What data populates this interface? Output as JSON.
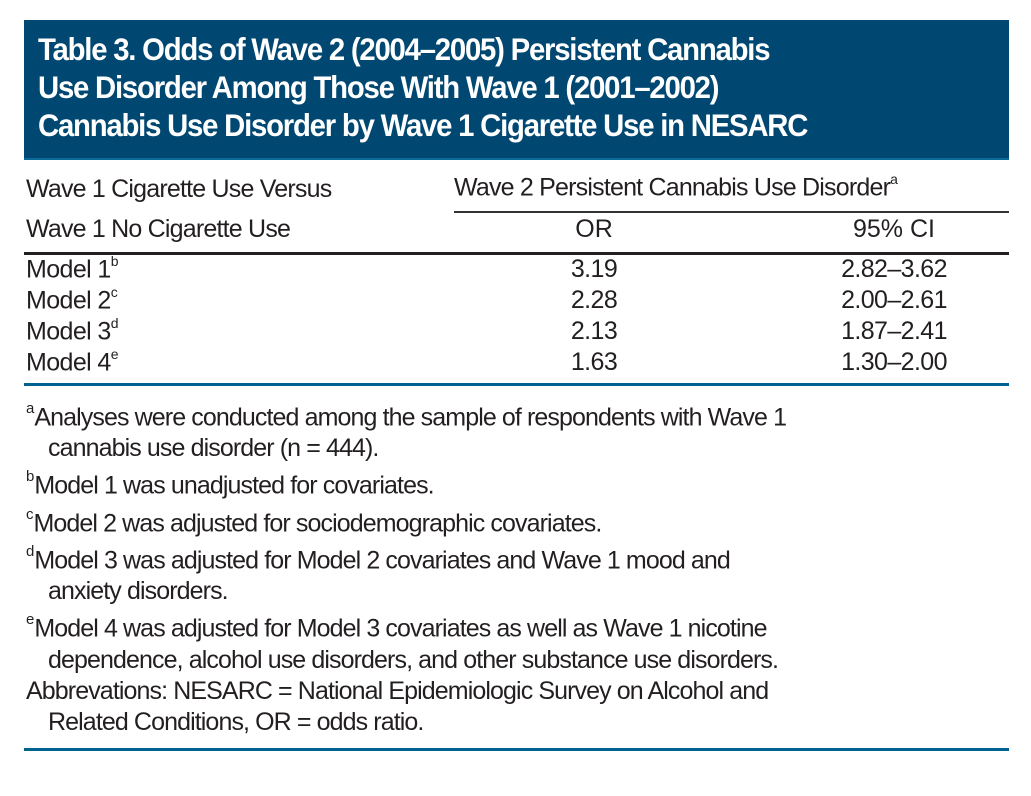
{
  "title": {
    "lines": [
      "Table 3. Odds of Wave 2  (2004–2005) Persistent Cannabis",
      "Use Disorder Among Those With Wave 1 (2001–2002)",
      "Cannabis Use Disorder by Wave 1 Cigarette Use in NESARC"
    ]
  },
  "header": {
    "row_label_line1": "Wave 1 Cigarette Use Versus",
    "row_label_line2": "Wave 1 No Cigarette Use",
    "span_label": "Wave 2 Persistent Cannabis Use Disorder",
    "span_footnote": "a",
    "col_or": "OR",
    "col_ci": "95% CI"
  },
  "rows": [
    {
      "label": "Model 1",
      "footnote": "b",
      "or": "3.19",
      "ci": "2.82–3.62"
    },
    {
      "label": "Model 2",
      "footnote": "c",
      "or": "2.28",
      "ci": "2.00–2.61"
    },
    {
      "label": "Model 3",
      "footnote": "d",
      "or": "2.13",
      "ci": "1.87–2.41"
    },
    {
      "label": "Model 4",
      "footnote": "e",
      "or": "1.63",
      "ci": "1.30–2.00"
    }
  ],
  "footnotes": [
    {
      "mark": "a",
      "line1": "Analyses were conducted among the sample of respondents with Wave 1",
      "line2": "cannabis use disorder (n = 444)."
    },
    {
      "mark": "b",
      "line1": "Model 1 was unadjusted for covariates.",
      "line2": ""
    },
    {
      "mark": "c",
      "line1": "Model 2 was adjusted for sociodemographic covariates.",
      "line2": ""
    },
    {
      "mark": "d",
      "line1": "Model 3 was adjusted for Model 2 covariates and Wave 1 mood and",
      "line2": "anxiety disorders."
    },
    {
      "mark": "e",
      "line1": "Model 4 was adjusted for Model 3 covariates as well as Wave 1 nicotine",
      "line2": "dependence, alcohol use disorders, and other substance use disorders."
    }
  ],
  "abbreviations": {
    "line1": "Abbrevations: NESARC = National Epidemiologic Survey on Alcohol and",
    "line2": "Related Conditions, OR = odds ratio."
  },
  "colors": {
    "title_background": "#004872",
    "accent_rule": "#00628e",
    "text": "#231f20"
  }
}
